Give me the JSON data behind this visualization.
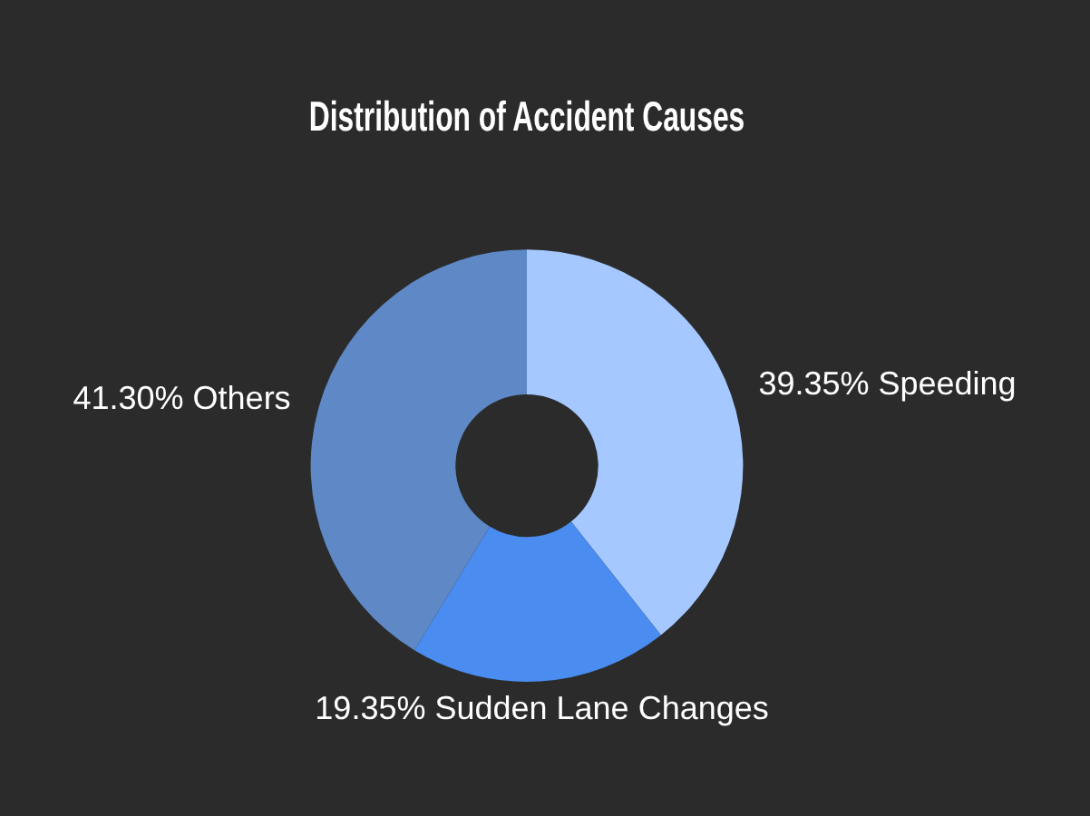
{
  "chart_data": {
    "type": "donut",
    "title": "Distribution of Accident Causes",
    "categories": [
      "Speeding",
      "Sudden Lane Changes",
      "Others"
    ],
    "values": [
      39.35,
      19.35,
      41.3
    ],
    "value_labels": [
      "39.35%",
      "19.35%",
      "41.30%"
    ],
    "colors": [
      "#a4c8ff",
      "#4a8cf0",
      "#5e88c6"
    ],
    "legend": false
  }
}
